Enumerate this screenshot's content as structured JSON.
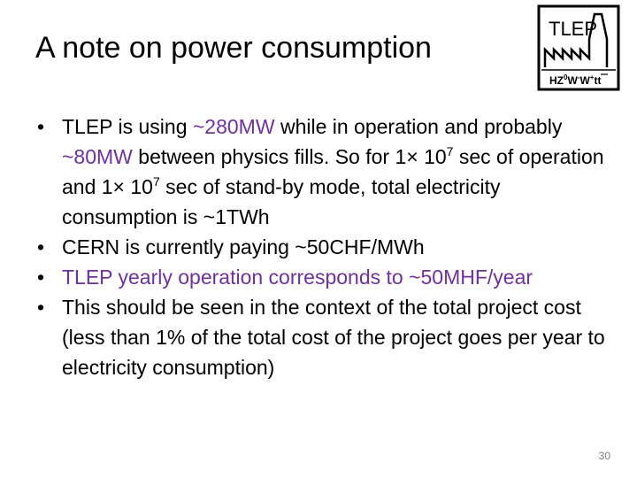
{
  "slide": {
    "title": "A note on power consumption",
    "logo": {
      "name": "TLEP",
      "subtitle_parts": {
        "hz": "HZ",
        "hz_sup": "0",
        "w1": "W",
        "w1_sup": "-",
        "w2": "W",
        "w2_sup": "+",
        "tt": "tt"
      },
      "icon": "tlep-factory-logo-icon"
    },
    "bullets": [
      {
        "prefix": "TLEP is using ",
        "highlight1": "~280MW",
        "mid1": " while in operation and probably ",
        "highlight2": "~80MW",
        "mid2": " between physics fills. So for 1× 10",
        "exp1": "7",
        "mid3": " sec of operation and 1× 10",
        "exp2": "7",
        "suffix": " sec of stand-by mode, total electricity consumption is ~1TWh"
      },
      {
        "text": "CERN is currently paying ~50CHF/MWh"
      },
      {
        "text": "TLEP yearly operation corresponds to ~50MHF/year"
      },
      {
        "text": "This should be seen in the context of the total project cost (less than 1% of the total cost of the project goes per year to electricity consumption)"
      }
    ],
    "bullet_symbol": "•",
    "page_number": "30"
  },
  "colors": {
    "text": "#000000",
    "highlight": "#7030a0",
    "page_number": "#7f7f7f",
    "logo_stroke": "#000000"
  }
}
